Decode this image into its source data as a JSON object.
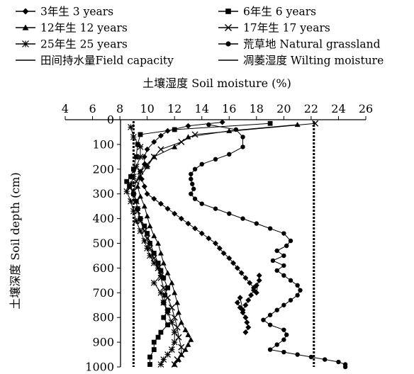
{
  "chart_data": {
    "type": "line",
    "title": "",
    "xlabel": "土壤湿度 Soil moisture (%)",
    "ylabel": "土壤深度 Soil depth (cm)",
    "xlim": [
      4,
      26
    ],
    "ylim": [
      0,
      1000
    ],
    "y_inverted": true,
    "x_axis_position": "top",
    "x_ticks": [
      4,
      6,
      8,
      10,
      12,
      14,
      16,
      18,
      20,
      22,
      24,
      26
    ],
    "y_ticks": [
      0,
      100,
      200,
      300,
      400,
      500,
      600,
      700,
      800,
      900,
      1000
    ],
    "grid": false,
    "legend_position": "top",
    "legend": [
      {
        "label": "3年生 3 years",
        "marker": "diamond"
      },
      {
        "label": "6年生 6 years",
        "marker": "square"
      },
      {
        "label": "12年生 12 years",
        "marker": "triangle"
      },
      {
        "label": "17年生 17 years",
        "marker": "x"
      },
      {
        "label": "25年生 25 years",
        "marker": "asterisk"
      },
      {
        "label": "荒草地 Natural grassland",
        "marker": "circle"
      },
      {
        "label": "田间持水量Field capacity",
        "marker": "dash-line"
      },
      {
        "label": "凋萎湿度 Wilting moisture",
        "marker": "dash-line"
      }
    ],
    "series": [
      {
        "name": "3年生 3 years",
        "marker": "diamond",
        "x": [
          15.5,
          13,
          11.5,
          11,
          10.5,
          10,
          9.8,
          9.8,
          9.5,
          9.6,
          9.8,
          10,
          10.5,
          11,
          11.5,
          12,
          12.5,
          13,
          13.5,
          14,
          14.5,
          15,
          15.3,
          15.6,
          16,
          16.3,
          16.6,
          16.9,
          17.2,
          17.5,
          17.8,
          18,
          18.2,
          18.2,
          18,
          17.8,
          17.6,
          17.4,
          17.2,
          17,
          16.8,
          16.6,
          16.8,
          17,
          17.2,
          17.3,
          17.4,
          17.2
        ],
        "y": [
          10,
          25,
          45,
          65,
          90,
          120,
          150,
          180,
          210,
          240,
          270,
          300,
          320,
          340,
          360,
          380,
          400,
          420,
          440,
          460,
          480,
          500,
          520,
          540,
          560,
          580,
          600,
          620,
          640,
          660,
          680,
          700,
          630,
          650,
          670,
          690,
          710,
          730,
          750,
          770,
          720,
          740,
          760,
          780,
          800,
          820,
          840,
          860
        ]
      },
      {
        "name": "6年生 6 years",
        "marker": "square",
        "x": [
          19,
          12,
          9.5,
          9.3,
          9.2,
          9,
          8.8,
          8.5,
          8.7,
          9,
          9.2,
          9.3,
          9.5,
          9.8,
          10,
          10.2,
          10.5,
          10.8,
          11,
          11.2,
          11.5,
          11.3,
          11.2,
          11.5,
          11.2,
          11.5,
          11,
          10.8,
          10.5,
          10.5,
          10.2,
          10.2
        ],
        "y": [
          15,
          40,
          60,
          100,
          150,
          200,
          230,
          250,
          270,
          300,
          330,
          360,
          400,
          430,
          460,
          500,
          540,
          580,
          610,
          640,
          680,
          710,
          740,
          770,
          800,
          830,
          860,
          880,
          900,
          930,
          960,
          990
        ]
      },
      {
        "name": "12年生 12 years",
        "marker": "triangle",
        "x": [
          21,
          16,
          13,
          12,
          10.5,
          10,
          9.5,
          9.3,
          9.5,
          9.8,
          10,
          10.2,
          10.5,
          10.8,
          11,
          11.2,
          11.5,
          11.8,
          12,
          12.2,
          12.3,
          12.5,
          12.8,
          13,
          13.2,
          13,
          12.8,
          12.5,
          12.3,
          12
        ],
        "y": [
          20,
          45,
          70,
          110,
          150,
          190,
          230,
          270,
          310,
          350,
          390,
          430,
          470,
          500,
          540,
          580,
          620,
          660,
          700,
          740,
          780,
          820,
          850,
          870,
          890,
          910,
          930,
          950,
          970,
          990
        ]
      },
      {
        "name": "17年生 17 years",
        "marker": "x",
        "x": [
          22.3,
          13.5,
          12.5,
          11,
          10.5,
          10,
          9.5,
          9.2,
          9,
          9.2,
          9.3,
          9.5,
          9.8,
          10,
          10.2,
          10.5,
          10.8,
          11,
          11.2,
          11.5,
          11.8,
          12,
          12.2,
          12.3,
          12.5,
          12.5,
          12.2,
          12
        ],
        "y": [
          15,
          60,
          90,
          120,
          150,
          180,
          210,
          250,
          290,
          330,
          370,
          410,
          450,
          480,
          520,
          560,
          600,
          640,
          680,
          720,
          760,
          800,
          840,
          880,
          920,
          950,
          970,
          990
        ]
      },
      {
        "name": "25年生 25 years",
        "marker": "asterisk",
        "x": [
          8.8,
          9,
          9.5,
          9.5,
          9.2,
          9,
          8.8,
          8.5,
          8.8,
          9,
          9.2,
          9.5,
          9.8,
          10,
          10.2,
          10.5,
          10.8,
          11,
          10.5,
          11,
          11.2,
          11.5,
          11.8,
          12,
          12,
          11.8,
          11.5,
          11.2,
          11
        ],
        "y": [
          30,
          70,
          110,
          150,
          190,
          230,
          260,
          290,
          330,
          370,
          410,
          450,
          490,
          520,
          550,
          580,
          600,
          630,
          660,
          700,
          740,
          780,
          820,
          860,
          900,
          930,
          950,
          970,
          990
        ]
      },
      {
        "name": "荒草地 Natural grassland",
        "marker": "circle",
        "x": [
          14.5,
          16.5,
          17,
          17,
          16,
          15,
          14,
          13.5,
          13.2,
          13.2,
          13.3,
          13.4,
          13.2,
          13.5,
          14,
          15,
          16,
          17,
          18,
          19,
          20,
          20.5,
          20.2,
          19.5,
          20,
          19.2,
          20,
          19.5,
          20,
          20.5,
          21,
          21.2,
          21,
          20.5,
          20,
          19.5,
          19,
          18.5,
          19,
          20,
          20.2,
          20,
          19.5,
          19,
          20,
          21,
          22,
          23,
          24,
          24.5,
          24.5
        ],
        "y": [
          20,
          40,
          70,
          110,
          140,
          160,
          180,
          200,
          220,
          240,
          260,
          280,
          300,
          320,
          340,
          360,
          380,
          400,
          420,
          440,
          460,
          490,
          510,
          530,
          550,
          570,
          590,
          610,
          630,
          650,
          670,
          690,
          710,
          730,
          750,
          770,
          790,
          810,
          830,
          850,
          870,
          890,
          910,
          930,
          940,
          950,
          960,
          970,
          980,
          990,
          1000
        ]
      }
    ],
    "reference_lines": [
      {
        "name": "田间持水量Field capacity",
        "x": 22.2
      },
      {
        "name": "凋萎湿度 Wilting moisture",
        "x": 9.0
      }
    ]
  }
}
